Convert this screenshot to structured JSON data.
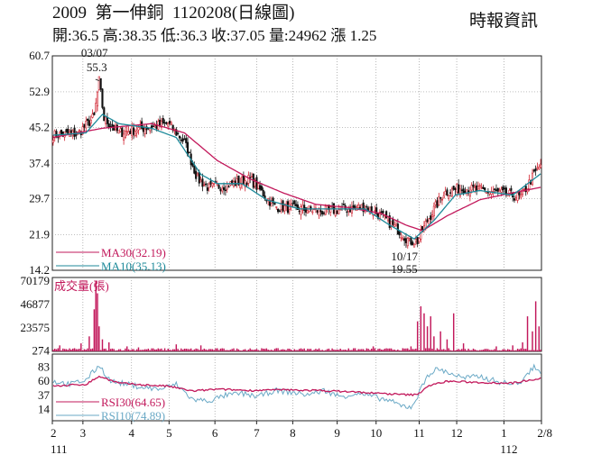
{
  "header": {
    "code": "2009",
    "name": "第一伸銅",
    "date": "1120208",
    "chart_kind": "(日線圖)",
    "brand": "時報資訊"
  },
  "quote": {
    "open": "開:36.5",
    "high": "高:38.35",
    "low": "低:36.3",
    "close": "收:37.05",
    "volume": "量:24962",
    "change": "漲 1.25"
  },
  "colors": {
    "up": "#d0202e",
    "down": "#111111",
    "ma30": "#c2185b",
    "ma10": "#1e8a9a",
    "volume": "#c2185b",
    "rsi30": "#c2185b",
    "rsi10": "#6aa9c6"
  },
  "chart_data": [
    {
      "type": "candlestick",
      "panel": "price",
      "ylim": [
        14.2,
        60.7
      ],
      "y_ticks": [
        "60.7",
        "52.9",
        "45.2",
        "37.4",
        "29.7",
        "21.9",
        "14.2"
      ],
      "y_tick_values": [
        60.7,
        52.9,
        45.2,
        37.4,
        29.7,
        21.9,
        14.2
      ],
      "annotations": [
        {
          "date": "03/07",
          "value": "55.3"
        },
        {
          "date": "10/17",
          "value": "19.55"
        }
      ],
      "series": [
        {
          "name": "MA30",
          "legend": "MA30(32.19)",
          "last": 32.19
        },
        {
          "name": "MA10",
          "legend": "MA10(35.13)",
          "last": 35.13
        }
      ],
      "keypoints": [
        [
          0,
          43.5
        ],
        [
          15,
          43.8
        ],
        [
          25,
          47.5
        ],
        [
          28,
          55.3
        ],
        [
          31,
          47
        ],
        [
          40,
          44
        ],
        [
          55,
          45
        ],
        [
          70,
          46
        ],
        [
          80,
          42
        ],
        [
          88,
          34
        ],
        [
          95,
          32
        ],
        [
          110,
          33
        ],
        [
          120,
          34
        ],
        [
          135,
          28
        ],
        [
          150,
          27.5
        ],
        [
          165,
          27
        ],
        [
          180,
          27.5
        ],
        [
          190,
          28
        ],
        [
          200,
          26
        ],
        [
          210,
          23
        ],
        [
          217,
          20.5
        ],
        [
          222,
          20.5
        ],
        [
          228,
          25
        ],
        [
          238,
          31
        ],
        [
          248,
          32
        ],
        [
          262,
          31.5
        ],
        [
          272,
          31
        ],
        [
          285,
          30
        ],
        [
          293,
          35
        ],
        [
          297,
          37.05
        ]
      ],
      "ma30_keypoints": [
        [
          0,
          43
        ],
        [
          30,
          45
        ],
        [
          60,
          46
        ],
        [
          80,
          44
        ],
        [
          100,
          38
        ],
        [
          120,
          34
        ],
        [
          140,
          31
        ],
        [
          160,
          28.5
        ],
        [
          180,
          27.8
        ],
        [
          200,
          26.5
        ],
        [
          215,
          24
        ],
        [
          225,
          22.8
        ],
        [
          240,
          26
        ],
        [
          260,
          29.5
        ],
        [
          280,
          31
        ],
        [
          297,
          32.19
        ]
      ],
      "ma10_keypoints": [
        [
          0,
          43.5
        ],
        [
          20,
          44
        ],
        [
          30,
          48
        ],
        [
          40,
          46
        ],
        [
          60,
          45
        ],
        [
          75,
          43
        ],
        [
          90,
          35
        ],
        [
          100,
          33
        ],
        [
          115,
          33
        ],
        [
          130,
          29.5
        ],
        [
          150,
          27.5
        ],
        [
          170,
          27.5
        ],
        [
          190,
          27.5
        ],
        [
          205,
          24
        ],
        [
          220,
          21
        ],
        [
          232,
          25
        ],
        [
          245,
          30.5
        ],
        [
          260,
          31.5
        ],
        [
          280,
          30.5
        ],
        [
          297,
          35.13
        ]
      ]
    },
    {
      "type": "bar",
      "panel": "volume",
      "title": "成交量(張)",
      "ylim": [
        0,
        70179
      ],
      "y_ticks": [
        "70179",
        "46877",
        "23575",
        "274"
      ],
      "y_tick_values": [
        70179,
        46877,
        23575,
        274
      ],
      "spikes": [
        [
          4,
          6000
        ],
        [
          10,
          3000
        ],
        [
          17,
          8000
        ],
        [
          22,
          15000
        ],
        [
          25,
          42000
        ],
        [
          26,
          70179
        ],
        [
          27,
          58000
        ],
        [
          28,
          25000
        ],
        [
          30,
          12000
        ],
        [
          34,
          9000
        ],
        [
          45,
          5000
        ],
        [
          52,
          4000
        ],
        [
          60,
          3000
        ],
        [
          75,
          7000
        ],
        [
          90,
          6000
        ],
        [
          120,
          3000
        ],
        [
          150,
          2500
        ],
        [
          180,
          3000
        ],
        [
          195,
          5000
        ],
        [
          218,
          5000
        ],
        [
          222,
          30000
        ],
        [
          224,
          45000
        ],
        [
          226,
          38000
        ],
        [
          228,
          25000
        ],
        [
          230,
          35000
        ],
        [
          232,
          15000
        ],
        [
          236,
          20000
        ],
        [
          240,
          12000
        ],
        [
          244,
          38000
        ],
        [
          250,
          8000
        ],
        [
          270,
          5000
        ],
        [
          280,
          6000
        ],
        [
          286,
          9000
        ],
        [
          289,
          35000
        ],
        [
          292,
          20000
        ],
        [
          294,
          50000
        ],
        [
          296,
          24962
        ]
      ]
    },
    {
      "type": "line",
      "panel": "rsi",
      "ylim": [
        0,
        100
      ],
      "y_ticks": [
        "83",
        "60",
        "37",
        "14"
      ],
      "y_tick_values": [
        83,
        60,
        37,
        14
      ],
      "series": [
        {
          "name": "RSI30",
          "legend": "RSI30(64.65)",
          "last": 64.65,
          "keypoints": [
            [
              0,
              52
            ],
            [
              20,
              55
            ],
            [
              28,
              68
            ],
            [
              40,
              57
            ],
            [
              55,
              54
            ],
            [
              70,
              52
            ],
            [
              85,
              44
            ],
            [
              100,
              47
            ],
            [
              120,
              45
            ],
            [
              140,
              46
            ],
            [
              160,
              45
            ],
            [
              180,
              43
            ],
            [
              200,
              40
            ],
            [
              215,
              38
            ],
            [
              222,
              38
            ],
            [
              228,
              52
            ],
            [
              240,
              60
            ],
            [
              260,
              58
            ],
            [
              280,
              57
            ],
            [
              290,
              62
            ],
            [
              297,
              64.65
            ]
          ]
        },
        {
          "name": "RSI10",
          "legend": "RSI10(74.89)",
          "last": 74.89,
          "keypoints": [
            [
              0,
              60
            ],
            [
              10,
              55
            ],
            [
              20,
              62
            ],
            [
              28,
              86
            ],
            [
              35,
              60
            ],
            [
              45,
              55
            ],
            [
              55,
              50
            ],
            [
              65,
              47
            ],
            [
              75,
              55
            ],
            [
              85,
              30
            ],
            [
              95,
              28
            ],
            [
              105,
              37
            ],
            [
              115,
              40
            ],
            [
              125,
              35
            ],
            [
              135,
              45
            ],
            [
              145,
              42
            ],
            [
              155,
              38
            ],
            [
              165,
              45
            ],
            [
              175,
              35
            ],
            [
              185,
              40
            ],
            [
              195,
              35
            ],
            [
              205,
              28
            ],
            [
              212,
              20
            ],
            [
              218,
              18
            ],
            [
              222,
              35
            ],
            [
              228,
              70
            ],
            [
              234,
              80
            ],
            [
              240,
              75
            ],
            [
              250,
              65
            ],
            [
              260,
              68
            ],
            [
              270,
              60
            ],
            [
              280,
              55
            ],
            [
              287,
              62
            ],
            [
              290,
              75
            ],
            [
              293,
              85
            ],
            [
              297,
              74.89
            ]
          ]
        }
      ]
    }
  ],
  "x_axis": {
    "months": [
      "2",
      "3",
      "4",
      "5",
      "6",
      "7",
      "8",
      "9",
      "10",
      "11",
      "12",
      "1",
      "2/8"
    ],
    "month_index": [
      0,
      22,
      57,
      84,
      117,
      147,
      173,
      205,
      233,
      264,
      291,
      325,
      352
    ],
    "year_start": "111",
    "year_end": "112"
  }
}
